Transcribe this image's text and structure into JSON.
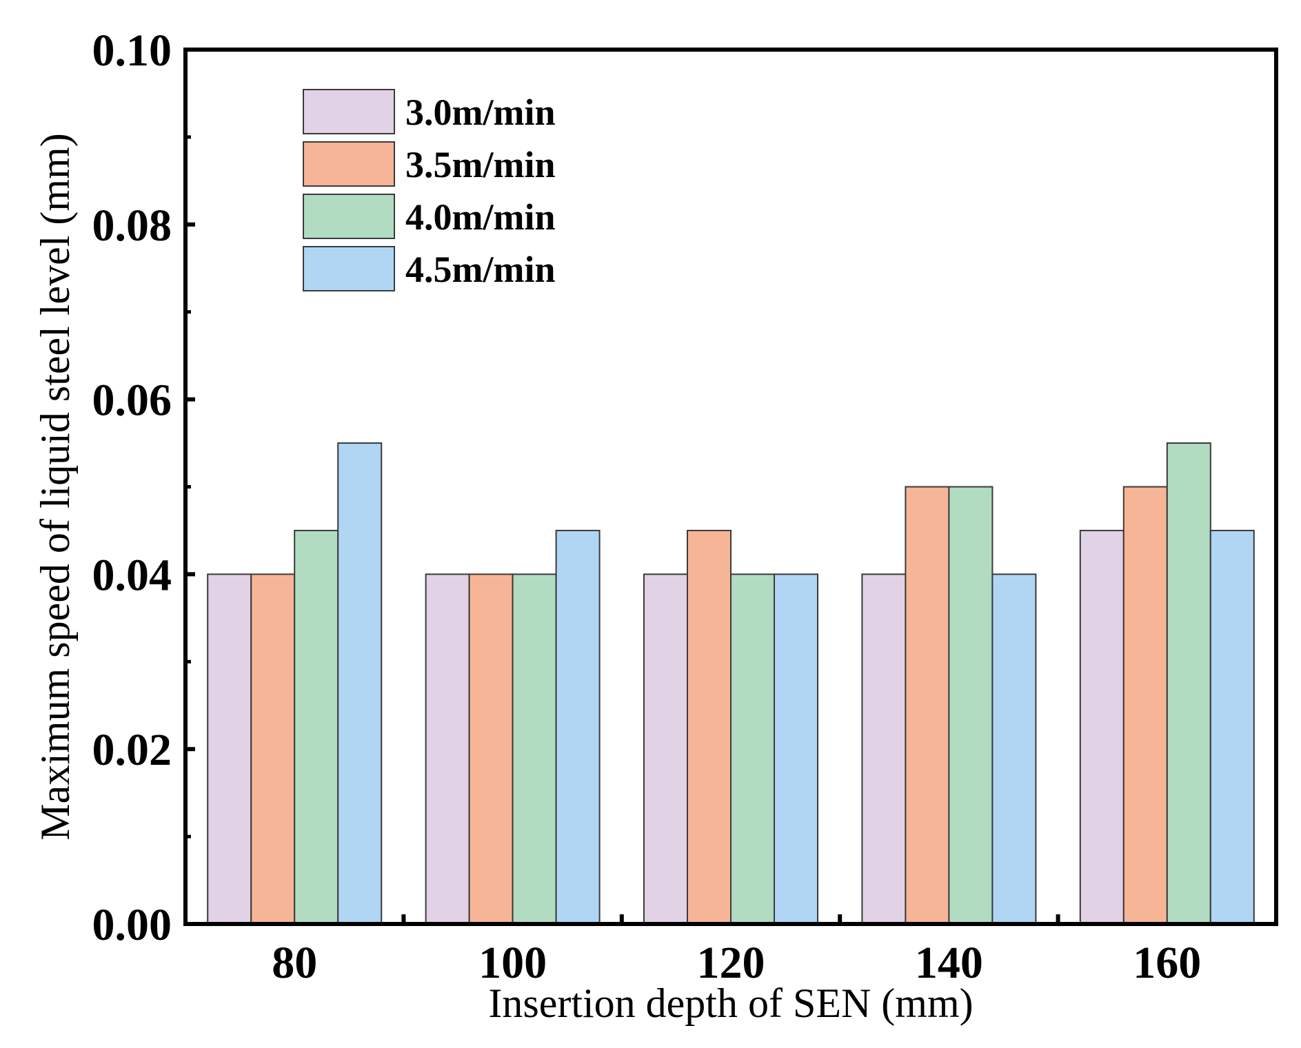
{
  "chart_data": {
    "type": "bar",
    "title": "",
    "xlabel": "Insertion depth of SEN (mm)",
    "ylabel": "Maximum speed of liquid steel level (mm)",
    "categories": [
      "80",
      "100",
      "120",
      "140",
      "160"
    ],
    "ylim": [
      0,
      0.1
    ],
    "yticks": [
      "0.00",
      "0.02",
      "0.04",
      "0.06",
      "0.08",
      "0.10"
    ],
    "legend_position": "top-left",
    "grid": false,
    "series": [
      {
        "name": "3.0m/min",
        "color": "#e2d2e6",
        "values": [
          0.04,
          0.04,
          0.04,
          0.04,
          0.045
        ]
      },
      {
        "name": "3.5m/min",
        "color": "#f7b597",
        "values": [
          0.04,
          0.04,
          0.045,
          0.05,
          0.05
        ]
      },
      {
        "name": "4.0m/min",
        "color": "#b1dcc2",
        "values": [
          0.045,
          0.04,
          0.04,
          0.05,
          0.055
        ]
      },
      {
        "name": "4.5m/min",
        "color": "#b0d6f3",
        "values": [
          0.055,
          0.045,
          0.04,
          0.04,
          0.045
        ]
      }
    ]
  }
}
